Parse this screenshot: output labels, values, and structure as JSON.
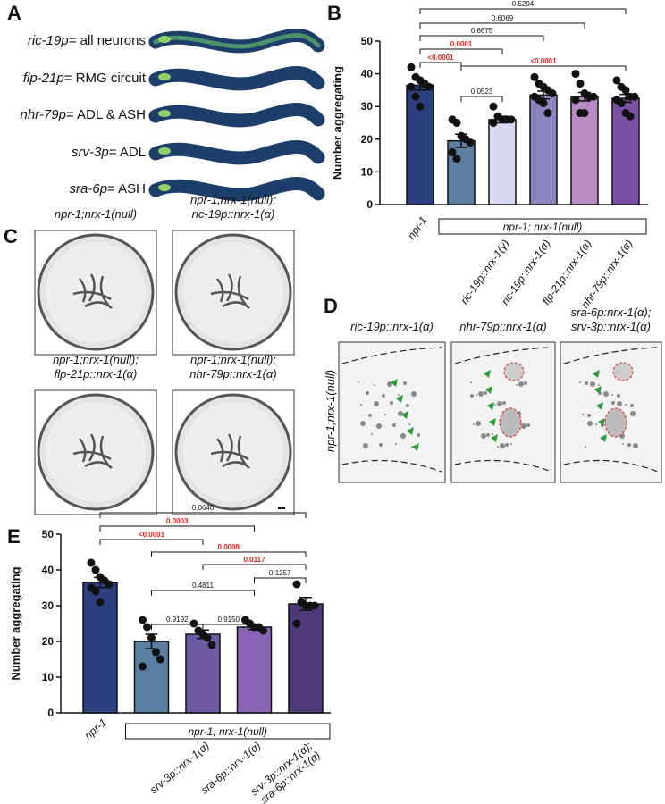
{
  "panel_labels": [
    "A",
    "B",
    "C",
    "D",
    "E"
  ],
  "panel_a": {
    "rows": [
      {
        "promoter": "ric-19p",
        "region": "= all neurons"
      },
      {
        "promoter": "flp-21p",
        "region": "= RMG circuit"
      },
      {
        "promoter": "nhr-79p",
        "region": "= ADL & ASH"
      },
      {
        "promoter": "srv-3p",
        "region": "= ADL"
      },
      {
        "promoter": "sra-6p",
        "region": "= ASH"
      }
    ]
  },
  "panel_c": {
    "images": [
      {
        "lines": [
          "npr-1;nrx-1(null)"
        ]
      },
      {
        "lines": [
          "npr-1;nrx-1(null);",
          "ric-19p::nrx-1(α)"
        ]
      },
      {
        "lines": [
          "npr-1;nrx-1(null);",
          "flp-21p::nrx-1(α)"
        ]
      },
      {
        "lines": [
          "npr-1;nrx-1(null);",
          "nhr-79p::nrx-1(α)"
        ]
      }
    ]
  },
  "panel_d": {
    "row_label": "npr-1;nrx-1(null)",
    "images": [
      {
        "lines": [
          "ric-19p::nrx-1(α)"
        ]
      },
      {
        "lines": [
          "nhr-79p::nrx-1(α)"
        ]
      },
      {
        "lines": [
          "sra-6p:nrx-1(α);",
          "srv-3p::nrx-1(α)"
        ]
      }
    ]
  },
  "chart_data": [
    {
      "type": "bar",
      "ylabel": "Number aggregating",
      "categories": [
        "npr-1",
        null,
        "ric-19p::nrx-1(γ)",
        "ric-19p::nrx-1(α)",
        "flp-21p::nrx-1(α)",
        "nhr-79p::nrx-1(α)"
      ],
      "values": [
        36.5,
        19.5,
        26,
        33.5,
        33,
        32.5
      ],
      "errors": [
        1.5,
        2,
        1,
        1.2,
        1.3,
        1.2
      ],
      "points": [
        [
          42,
          39,
          38,
          37,
          36,
          36,
          33,
          30
        ],
        [
          26,
          25,
          21,
          20,
          19,
          16,
          14
        ],
        [
          30,
          27,
          26,
          26,
          26,
          25
        ],
        [
          39,
          37,
          36,
          35,
          34,
          33,
          32,
          31,
          28
        ],
        [
          40,
          37,
          34,
          33,
          33,
          32,
          28,
          28
        ],
        [
          38,
          36,
          35,
          33,
          33,
          32,
          31,
          28,
          27
        ]
      ],
      "colors": [
        "#2e3f7f",
        "#5b7fa0",
        "#d6d9f0",
        "#8b85c1",
        "#b98bc4",
        "#7a4fa4"
      ],
      "group_label": "npr-1; nrx-1(null)",
      "ylim": [
        0,
        50
      ],
      "yticks": [
        0,
        10,
        20,
        30,
        40,
        50
      ],
      "comparisons": [
        {
          "from": 0,
          "to": 5,
          "label": "0.5294",
          "color": "#111111"
        },
        {
          "from": 0,
          "to": 4,
          "label": "0.6069",
          "color": "#111111"
        },
        {
          "from": 0,
          "to": 3,
          "label": "0.6675",
          "color": "#111111"
        },
        {
          "from": 0,
          "to": 2,
          "label": "0.0001",
          "color": "#e3211c"
        },
        {
          "from": 0,
          "to": 1,
          "label": "<0.0001",
          "color": "#e3211c"
        },
        {
          "from": 1,
          "to": 5,
          "label": "<0.0001",
          "color": "#e3211c"
        },
        {
          "from": 1,
          "to": 2,
          "label": "0.0523",
          "color": "#111111"
        }
      ]
    },
    {
      "type": "bar",
      "ylabel": "Number aggregating",
      "categories": [
        "npr-1",
        null,
        "srv-3p::nrx-1(α)",
        "sra-6p::nrx-1(α)",
        [
          "srv-3p::nrx-1(α);",
          "sra-6p::nrx-1(α)"
        ]
      ],
      "values": [
        36.5,
        20,
        22,
        24,
        30.5
      ],
      "errors": [
        1.4,
        2,
        1.2,
        0.7,
        1.8
      ],
      "points": [
        [
          42,
          40,
          38,
          37,
          36,
          35,
          34,
          31
        ],
        [
          26,
          24,
          21,
          17,
          15,
          13
        ],
        [
          25,
          23,
          22,
          21,
          19
        ],
        [
          26,
          25,
          24,
          24,
          23
        ],
        [
          36,
          31,
          30,
          30,
          30,
          25
        ]
      ],
      "colors": [
        "#2e3f7f",
        "#5b7fa0",
        "#6e5aa0",
        "#8a64b6",
        "#4f3a78"
      ],
      "group_label": "npr-1; nrx-1(null)",
      "ylim": [
        0,
        50
      ],
      "yticks": [
        0,
        10,
        20,
        30,
        40,
        50
      ],
      "comparisons": [
        {
          "from": 0,
          "to": 4,
          "label": "0.0646",
          "color": "#111111"
        },
        {
          "from": 0,
          "to": 3,
          "label": "0.0003",
          "color": "#e3211c"
        },
        {
          "from": 0,
          "to": 2,
          "label": "<0.0001",
          "color": "#e3211c"
        },
        {
          "from": 1,
          "to": 4,
          "label": "0.0009",
          "color": "#e3211c"
        },
        {
          "from": 2,
          "to": 4,
          "label": "0.0117",
          "color": "#e3211c"
        },
        {
          "from": 3,
          "to": 4,
          "label": "0.1257",
          "color": "#111111"
        },
        {
          "from": 1,
          "to": 3,
          "label": "0.4811",
          "color": "#111111"
        },
        {
          "from": 1,
          "to": 2,
          "label": "0.9192",
          "color": "#111111"
        },
        {
          "from": 2,
          "to": 3,
          "label": "0.9150",
          "color": "#111111"
        }
      ]
    }
  ]
}
